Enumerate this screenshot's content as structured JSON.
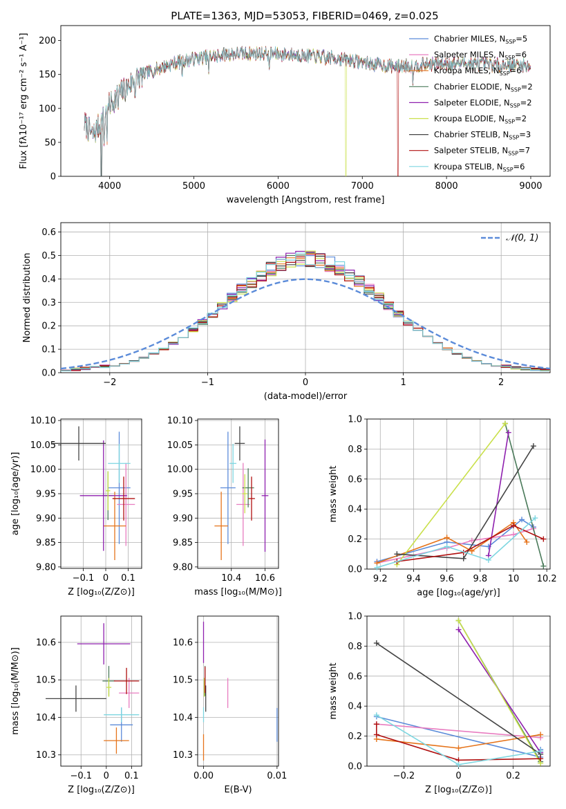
{
  "figure": {
    "title": "PLATE=1363, MJD=53053, FIBERID=0469, z=0.025",
    "colors": [
      "#5b8bd9",
      "#e87cc0",
      "#e5731a",
      "#4a7a5a",
      "#8e1fae",
      "#c9e04a",
      "#444444",
      "#b01010",
      "#7dd6e0"
    ]
  },
  "chart_data": [
    {
      "id": "spectrum",
      "type": "line",
      "xlabel": "wavelength [Angstrom, rest frame]",
      "ylabel": "Flux [fλ10⁻¹⁷ erg cm⁻² s⁻¹ A⁻¹]",
      "xlim": [
        3420,
        9230
      ],
      "ylim": [
        0,
        222
      ],
      "xticks": [
        4000,
        5000,
        6000,
        7000,
        8000,
        9000
      ],
      "yticks": [
        0,
        50,
        100,
        150,
        200
      ],
      "legend_position": "top-right",
      "continuum": {
        "x": [
          3700,
          3800,
          3900,
          4000,
          4100,
          4200,
          4300,
          4400,
          4600,
          4800,
          5000,
          5200,
          5400,
          5600,
          5800,
          6000,
          6200,
          6400,
          6600,
          6800,
          7000,
          7200,
          7400,
          7600,
          7800,
          8000,
          8200,
          8400,
          8600,
          8800,
          9000
        ],
        "y": [
          78,
          60,
          80,
          105,
          120,
          130,
          143,
          150,
          160,
          168,
          173,
          177,
          180,
          181,
          181,
          180,
          179,
          177,
          175,
          172,
          168,
          164,
          162,
          163,
          165,
          166,
          167,
          165,
          164,
          164,
          163
        ]
      },
      "series": [
        {
          "name": "Chabrier MILES",
          "nssp": "5"
        },
        {
          "name": "Salpeter MILES",
          "nssp": "6"
        },
        {
          "name": "Kroupa MILES",
          "nssp": "6"
        },
        {
          "name": "Chabrier ELODIE",
          "nssp": "2"
        },
        {
          "name": "Salpeter ELODIE",
          "nssp": "2"
        },
        {
          "name": "Kroupa ELODIE",
          "nssp": "2",
          "dropout": [
            6800,
            6810
          ]
        },
        {
          "name": "Chabrier STELIB",
          "nssp": "3"
        },
        {
          "name": "Salpeter STELIB",
          "nssp": "7",
          "dropout": [
            7420,
            7430
          ]
        },
        {
          "name": "Kroupa STELIB",
          "nssp": "6"
        }
      ]
    },
    {
      "id": "residuals",
      "type": "area",
      "xlabel": "(data-model)/error",
      "ylabel": "Normed distribution",
      "xlim": [
        -2.5,
        2.5
      ],
      "ylim": [
        0,
        0.64
      ],
      "xticks": [
        -2,
        -1,
        0,
        1,
        2
      ],
      "yticks": [
        0.0,
        0.1,
        0.2,
        0.3,
        0.4,
        0.5,
        0.6
      ],
      "legend": "𝒩(0, 1)",
      "legend_position": "top-right",
      "bin_width": 0.1,
      "grid": true
    },
    {
      "id": "age-vs-Z",
      "type": "scatter",
      "xlabel": "Z [log₁₀(Z/Z⊙)]",
      "ylabel": "age  [log₁₀(age/yr)]",
      "xlim": [
        -0.2,
        0.16
      ],
      "ylim": [
        9.797,
        10.103
      ],
      "xticks": [
        -0.1,
        0.0,
        0.1
      ],
      "yticks": [
        9.8,
        9.85,
        9.9,
        9.95,
        10.0,
        10.05,
        10.1
      ],
      "points": [
        {
          "x": 0.06,
          "y": 9.962,
          "xerr": 0.05,
          "yerr": 0.115
        },
        {
          "x": 0.09,
          "y": 9.928,
          "xerr": 0.04,
          "yerr": 0.085
        },
        {
          "x": 0.04,
          "y": 9.884,
          "xerr": 0.05,
          "yerr": 0.07
        },
        {
          "x": 0.01,
          "y": 9.946,
          "xerr": 0.025,
          "yerr": 0.05
        },
        {
          "x": -0.01,
          "y": 9.946,
          "xerr": 0.105,
          "yerr": 0.113
        },
        {
          "x": 0.01,
          "y": 9.956,
          "xerr": 0.01,
          "yerr": 0.04
        },
        {
          "x": -0.12,
          "y": 10.053,
          "xerr": 0.12,
          "yerr": 0.035
        },
        {
          "x": 0.08,
          "y": 9.94,
          "xerr": 0.05,
          "yerr": 0.045
        },
        {
          "x": 0.06,
          "y": 10.012,
          "xerr": 0.05,
          "yerr": 0.04
        }
      ]
    },
    {
      "id": "age-vs-mass",
      "type": "scatter",
      "xlabel": "mass [log₁₀(M/M⊙)]",
      "ylabel": "",
      "xlim": [
        10.2,
        10.68
      ],
      "ylim": [
        9.797,
        10.103
      ],
      "xticks": [
        10.4,
        10.6
      ],
      "yticks": [
        9.8,
        9.85,
        9.9,
        9.95,
        10.0,
        10.05,
        10.1
      ],
      "points": [
        {
          "x": 10.38,
          "y": 9.962,
          "xerr": 0.045,
          "yerr": 0.115
        },
        {
          "x": 10.47,
          "y": 9.928,
          "xerr": 0.04,
          "yerr": 0.085
        },
        {
          "x": 10.34,
          "y": 9.884,
          "xerr": 0.04,
          "yerr": 0.07
        },
        {
          "x": 10.5,
          "y": 9.962,
          "xerr": 0.035,
          "yerr": 0.04
        },
        {
          "x": 10.6,
          "y": 9.946,
          "xerr": 0.02,
          "yerr": 0.115
        },
        {
          "x": 10.48,
          "y": 9.95,
          "xerr": 0.015,
          "yerr": 0.04
        },
        {
          "x": 10.45,
          "y": 10.053,
          "xerr": 0.03,
          "yerr": 0.035
        },
        {
          "x": 10.52,
          "y": 9.94,
          "xerr": 0.02,
          "yerr": 0.045
        },
        {
          "x": 10.41,
          "y": 10.012,
          "xerr": 0.02,
          "yerr": 0.04
        }
      ]
    },
    {
      "id": "weight-vs-age",
      "type": "line",
      "xlabel": "age  [log₁₀(age/yr)]",
      "ylabel": "mass weight",
      "xlim": [
        9.12,
        10.22
      ],
      "ylim": [
        0,
        1.0
      ],
      "xticks": [
        9.2,
        9.4,
        9.6,
        9.8,
        10.0,
        10.2
      ],
      "yticks": [
        0.0,
        0.2,
        0.4,
        0.6,
        0.8,
        1.0
      ],
      "series": [
        {
          "x": [
            9.18,
            9.6,
            9.85,
            10.05,
            10.12
          ],
          "y": [
            0.05,
            0.18,
            0.15,
            0.33,
            0.28
          ]
        },
        {
          "x": [
            9.18,
            9.6,
            9.75,
            10.0,
            10.12
          ],
          "y": [
            0.04,
            0.14,
            0.19,
            0.23,
            0.27
          ]
        },
        {
          "x": [
            9.18,
            9.6,
            9.75,
            10.0,
            10.08
          ],
          "y": [
            0.04,
            0.21,
            0.12,
            0.31,
            0.18
          ]
        },
        {
          "x": [
            9.95,
            10.18
          ],
          "y": [
            0.97,
            0.02
          ]
        },
        {
          "x": [
            9.85,
            9.97
          ],
          "y": [
            0.09,
            0.91
          ]
        },
        {
          "x": [
            9.3,
            9.95
          ],
          "y": [
            0.03,
            0.97
          ]
        },
        {
          "x": [
            9.3,
            9.7,
            10.12
          ],
          "y": [
            0.1,
            0.07,
            0.82
          ]
        },
        {
          "x": [
            9.3,
            9.7,
            10.0,
            10.18
          ],
          "y": [
            0.05,
            0.11,
            0.29,
            0.2
          ]
        },
        {
          "x": [
            9.18,
            9.6,
            9.85,
            10.13
          ],
          "y": [
            0.01,
            0.15,
            0.06,
            0.34
          ]
        }
      ]
    },
    {
      "id": "mass-vs-Z",
      "type": "scatter",
      "xlabel": "Z [log₁₀(Z/Z⊙)]",
      "ylabel": "mass [log₁₀(M/M⊙)]",
      "xlim": [
        -0.18,
        0.14
      ],
      "ylim": [
        10.27,
        10.67
      ],
      "xticks": [
        -0.1,
        0.0,
        0.1
      ],
      "yticks": [
        10.3,
        10.4,
        10.5,
        10.6
      ],
      "points": [
        {
          "x": 0.06,
          "y": 10.38,
          "xerr": 0.045,
          "yerr": 0.045
        },
        {
          "x": 0.09,
          "y": 10.465,
          "xerr": 0.04,
          "yerr": 0.04
        },
        {
          "x": 0.04,
          "y": 10.338,
          "xerr": 0.05,
          "yerr": 0.035
        },
        {
          "x": 0.01,
          "y": 10.497,
          "xerr": 0.025,
          "yerr": 0.04
        },
        {
          "x": -0.01,
          "y": 10.596,
          "xerr": 0.105,
          "yerr": 0.055
        },
        {
          "x": 0.01,
          "y": 10.48,
          "xerr": 0.01,
          "yerr": 0.025
        },
        {
          "x": -0.12,
          "y": 10.45,
          "xerr": 0.12,
          "yerr": 0.035
        },
        {
          "x": 0.08,
          "y": 10.497,
          "xerr": 0.05,
          "yerr": 0.035
        },
        {
          "x": 0.06,
          "y": 10.407,
          "xerr": 0.07,
          "yerr": 0.02
        }
      ]
    },
    {
      "id": "mass-vs-ebv",
      "type": "scatter",
      "xlabel": "E(B-V)",
      "ylabel": "",
      "xlim": [
        -0.0008,
        0.0102
      ],
      "ylim": [
        10.27,
        10.67
      ],
      "xticks": [
        0.0,
        0.01
      ],
      "xtick_labels": [
        "0.00",
        "0.01"
      ],
      "yticks": [
        10.3,
        10.4,
        10.5,
        10.6
      ],
      "points": [
        {
          "x": 0.01,
          "y": 10.38,
          "xerr": 0,
          "yerr": 0.045
        },
        {
          "x": 0.0033,
          "y": 10.465,
          "xerr": 0,
          "yerr": 0.04
        },
        {
          "x": 0.0,
          "y": 10.32,
          "xerr": 0,
          "yerr": 0.035
        },
        {
          "x": 0.0002,
          "y": 10.497,
          "xerr": 0,
          "yerr": 0.04
        },
        {
          "x": 0.0,
          "y": 10.6,
          "xerr": 0,
          "yerr": 0.055
        },
        {
          "x": 0.0001,
          "y": 10.48,
          "xerr": 0,
          "yerr": 0.025
        },
        {
          "x": 0.0003,
          "y": 10.45,
          "xerr": 0,
          "yerr": 0.035
        },
        {
          "x": 0.0002,
          "y": 10.5,
          "xerr": 0,
          "yerr": 0.035
        },
        {
          "x": 0.0,
          "y": 10.407,
          "xerr": 0,
          "yerr": 0.02
        }
      ]
    },
    {
      "id": "weight-vs-Z",
      "type": "line",
      "xlabel": "Z [log₁₀(Z/Z⊙)]",
      "ylabel": "mass weight",
      "xlim": [
        -0.335,
        0.335
      ],
      "ylim": [
        0,
        1.0
      ],
      "xticks": [
        -0.2,
        0.0,
        0.2
      ],
      "yticks": [
        0.0,
        0.2,
        0.4,
        0.6,
        0.8,
        1.0
      ],
      "series": [
        {
          "x": [
            -0.3,
            0.3,
            0.3
          ],
          "y": [
            0.33,
            0.06,
            0.11
          ]
        },
        {
          "x": [
            -0.3,
            0.3
          ],
          "y": [
            0.28,
            0.19
          ]
        },
        {
          "x": [
            -0.3,
            0.0,
            0.3
          ],
          "y": [
            0.18,
            0.12,
            0.21
          ]
        },
        {
          "x": [
            0.0,
            0.3
          ],
          "y": [
            0.97,
            0.03
          ]
        },
        {
          "x": [
            0.0,
            0.3
          ],
          "y": [
            0.91,
            0.09
          ]
        },
        {
          "x": [
            0.0,
            0.3
          ],
          "y": [
            0.97,
            0.02
          ]
        },
        {
          "x": [
            -0.3,
            0.3
          ],
          "y": [
            0.82,
            0.08
          ]
        },
        {
          "x": [
            -0.3,
            -0.3,
            0.0,
            0.3
          ],
          "y": [
            0.28,
            0.21,
            0.04,
            0.05
          ]
        },
        {
          "x": [
            -0.3,
            0.0,
            0.3
          ],
          "y": [
            0.34,
            0.01,
            0.1
          ]
        }
      ]
    }
  ]
}
